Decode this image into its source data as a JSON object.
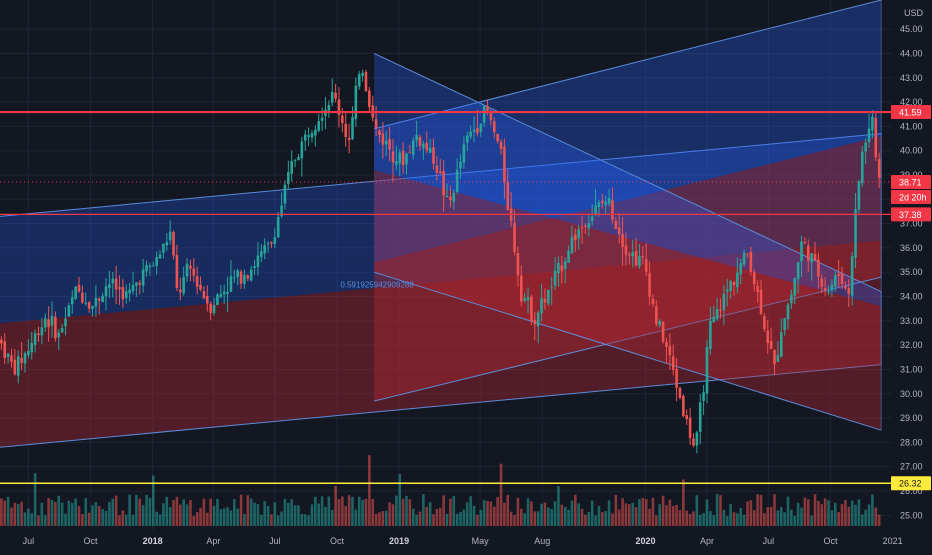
{
  "chart_data": {
    "type": "candlestick",
    "currency_label": "USD",
    "y_range": [
      24.6,
      46.2
    ],
    "x_range": [
      "2017-05-20",
      "2020-12-31"
    ],
    "y_ticks": [
      "25.00",
      "26.00",
      "27.00",
      "28.00",
      "29.00",
      "30.00",
      "31.00",
      "32.00",
      "33.00",
      "34.00",
      "35.00",
      "36.00",
      "37.00",
      "38.00",
      "39.00",
      "40.00",
      "41.00",
      "42.00",
      "43.00",
      "44.00",
      "45.00"
    ],
    "x_ticks": [
      {
        "label": "Jul",
        "date": "2017-07-01",
        "bold": false
      },
      {
        "label": "Oct",
        "date": "2017-10-01",
        "bold": false
      },
      {
        "label": "2018",
        "date": "2018-01-01",
        "bold": true
      },
      {
        "label": "Apr",
        "date": "2018-04-01",
        "bold": false
      },
      {
        "label": "Jul",
        "date": "2018-07-01",
        "bold": false
      },
      {
        "label": "Oct",
        "date": "2018-10-01",
        "bold": false
      },
      {
        "label": "2019",
        "date": "2019-01-01",
        "bold": true
      },
      {
        "label": "May",
        "date": "2019-05-01",
        "bold": false
      },
      {
        "label": "Aug",
        "date": "2019-08-01",
        "bold": false
      },
      {
        "label": "2020",
        "date": "2020-01-01",
        "bold": true
      },
      {
        "label": "Apr",
        "date": "2020-04-01",
        "bold": false
      },
      {
        "label": "Jul",
        "date": "2020-07-01",
        "bold": false
      },
      {
        "label": "Oct",
        "date": "2020-10-01",
        "bold": false
      },
      {
        "label": "2021",
        "date": "2021-01-01",
        "bold": false
      }
    ],
    "price_path": [
      [
        "2017-05-22",
        32.3
      ],
      [
        "2017-06-15",
        31.0
      ],
      [
        "2017-07-05",
        31.8
      ],
      [
        "2017-08-01",
        33.2
      ],
      [
        "2017-08-20",
        32.4
      ],
      [
        "2017-09-15",
        34.3
      ],
      [
        "2017-10-10",
        33.6
      ],
      [
        "2017-11-01",
        34.6
      ],
      [
        "2017-12-01",
        34.0
      ],
      [
        "2017-12-20",
        34.9
      ],
      [
        "2018-01-10",
        35.4
      ],
      [
        "2018-02-01",
        36.6
      ],
      [
        "2018-02-12",
        34.0
      ],
      [
        "2018-03-01",
        35.2
      ],
      [
        "2018-04-01",
        33.6
      ],
      [
        "2018-05-01",
        34.6
      ],
      [
        "2018-06-01",
        35.2
      ],
      [
        "2018-07-01",
        36.2
      ],
      [
        "2018-08-01",
        39.5
      ],
      [
        "2018-09-01",
        41.2
      ],
      [
        "2018-10-01",
        42.3
      ],
      [
        "2018-10-25",
        40.3
      ],
      [
        "2018-11-10",
        43.8
      ],
      [
        "2018-12-01",
        40.9
      ],
      [
        "2019-01-10",
        39.5
      ],
      [
        "2019-02-01",
        40.6
      ],
      [
        "2019-03-01",
        39.6
      ],
      [
        "2019-03-20",
        37.6
      ],
      [
        "2019-04-15",
        40.4
      ],
      [
        "2019-05-15",
        41.7
      ],
      [
        "2019-06-05",
        40.0
      ],
      [
        "2019-07-05",
        34.3
      ],
      [
        "2019-07-25",
        33.1
      ],
      [
        "2019-08-20",
        34.4
      ],
      [
        "2019-09-20",
        36.4
      ],
      [
        "2019-10-15",
        37.3
      ],
      [
        "2019-11-10",
        38.0
      ],
      [
        "2019-12-10",
        35.9
      ],
      [
        "2020-01-05",
        35.3
      ],
      [
        "2020-01-20",
        33.2
      ],
      [
        "2020-02-05",
        32.0
      ],
      [
        "2020-02-20",
        30.5
      ],
      [
        "2020-03-05",
        29.0
      ],
      [
        "2020-03-20",
        27.6
      ],
      [
        "2020-04-10",
        32.6
      ],
      [
        "2020-05-10",
        34.5
      ],
      [
        "2020-06-05",
        35.8
      ],
      [
        "2020-06-25",
        33.5
      ],
      [
        "2020-07-15",
        31.0
      ],
      [
        "2020-07-25",
        32.8
      ],
      [
        "2020-08-10",
        34.2
      ],
      [
        "2020-08-25",
        36.3
      ],
      [
        "2020-09-10",
        35.4
      ],
      [
        "2020-10-01",
        34.2
      ],
      [
        "2020-10-20",
        35.0
      ],
      [
        "2020-11-01",
        33.9
      ],
      [
        "2020-11-10",
        36.8
      ],
      [
        "2020-11-20",
        39.7
      ],
      [
        "2020-12-07",
        41.4
      ],
      [
        "2020-12-15",
        38.7
      ]
    ],
    "horizontal_lines": [
      {
        "price": 41.59,
        "label": "41.59",
        "color": "#f23645",
        "width": 2.2
      },
      {
        "price": 37.38,
        "label": "37.38",
        "color": "#f23645",
        "width": 1.3
      },
      {
        "price": 26.32,
        "label": "26.32",
        "color": "#ffeb3b",
        "width": 1.5
      }
    ],
    "dotted_price_line": {
      "price": 38.71,
      "label": "38.71",
      "countdown": "2d 20h",
      "color": "#f23645"
    },
    "channels": [
      {
        "name": "left-up",
        "start": "2017-05-20",
        "end": "2020-12-15",
        "upper": [
          37.3,
          40.7
        ],
        "mid": [
          32.9,
          36.3
        ],
        "lower": [
          27.8,
          31.2
        ]
      },
      {
        "name": "right-up",
        "start": "2018-11-25",
        "end": "2020-12-15",
        "upper": [
          40.9,
          46.2
        ],
        "mid": [
          35.4,
          40.6
        ],
        "lower": [
          29.7,
          34.8
        ]
      },
      {
        "name": "right-down",
        "start": "2018-11-25",
        "end": "2020-12-15",
        "upper": [
          44.0,
          34.2
        ],
        "mid": [
          39.2,
          33.6
        ],
        "lower": [
          35.0,
          28.5
        ]
      }
    ],
    "annotation_text": "0.591925942909288",
    "annotation_anchor": [
      "2018-10-15",
      34.5
    ],
    "colors": {
      "background": "#131722",
      "up": "#26a69a",
      "down": "#ef5350",
      "grid": "#1f2433",
      "axis_text": "#b2b5be",
      "channel_blue": "#2962ff",
      "channel_red": "#b22833"
    }
  }
}
